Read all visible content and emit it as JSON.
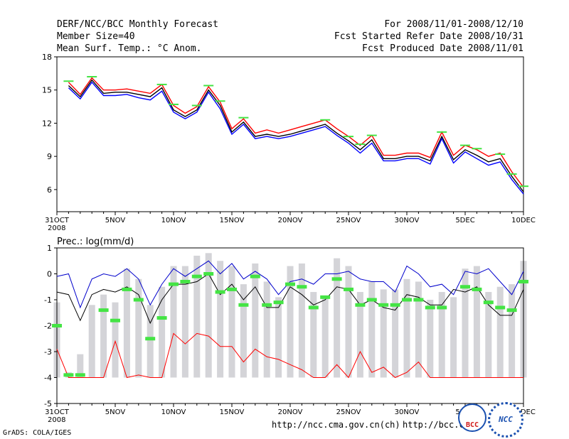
{
  "header": {
    "title": "DERF/NCC/BCC Monthly Forecast",
    "member_size": "Member Size=40",
    "variable": "Mean Surf. Temp.: °C Anom.",
    "period": "For 2008/11/01-2008/12/10",
    "fcst_start": "Fcst Started Refer Date 2008/10/31",
    "fcst_produced": "Fcst Produced Date 2008/11/01"
  },
  "chart_data": [
    {
      "type": "line",
      "title": "Mean Surf. Temp.: °C Anom.",
      "x": [
        0,
        1,
        2,
        3,
        4,
        5,
        6,
        7,
        8,
        9,
        10,
        11,
        12,
        13,
        14,
        15,
        16,
        17,
        18,
        19,
        20,
        21,
        22,
        23,
        24,
        25,
        26,
        27,
        28,
        29,
        30,
        31,
        32,
        33,
        34,
        35,
        36,
        37,
        38,
        39,
        40
      ],
      "x_tick_labels": [
        "31OCT",
        "5NOV",
        "10NOV",
        "15NOV",
        "20NOV",
        "25NOV",
        "30NOV",
        "5DEC",
        "10DEC"
      ],
      "x_sub_label": "2008",
      "ylim": [
        4,
        18
      ],
      "y_ticks": [
        6,
        9,
        12,
        15,
        18
      ],
      "series": [
        {
          "name": "ensemble max",
          "color": "#ff0000",
          "values": [
            null,
            15.7,
            14.6,
            16.1,
            15.0,
            15.0,
            15.1,
            14.9,
            14.7,
            15.5,
            13.6,
            12.9,
            13.5,
            15.3,
            13.9,
            11.5,
            12.4,
            11.1,
            11.4,
            11.1,
            11.4,
            11.7,
            12.0,
            12.3,
            11.5,
            10.8,
            10.0,
            10.9,
            9.1,
            9.1,
            9.3,
            9.3,
            8.9,
            11.2,
            9.1,
            10.0,
            9.6,
            9.0,
            9.3,
            7.6,
            6.2
          ]
        },
        {
          "name": "ensemble mean",
          "color": "#000000",
          "values": [
            null,
            15.4,
            14.4,
            15.9,
            14.7,
            14.8,
            14.8,
            14.6,
            14.4,
            15.2,
            13.2,
            12.6,
            13.2,
            15.0,
            13.6,
            11.2,
            12.1,
            10.8,
            11.0,
            10.8,
            11.0,
            11.3,
            11.6,
            11.9,
            11.1,
            10.4,
            9.6,
            10.5,
            8.8,
            8.8,
            9.0,
            9.0,
            8.6,
            10.8,
            8.7,
            9.6,
            9.1,
            8.5,
            8.8,
            7.2,
            5.8
          ]
        },
        {
          "name": "ensemble min",
          "color": "#0000ff",
          "values": [
            null,
            15.2,
            14.2,
            15.7,
            14.5,
            14.5,
            14.6,
            14.3,
            14.1,
            14.9,
            13.0,
            12.4,
            13.0,
            14.8,
            13.3,
            11.0,
            11.9,
            10.6,
            10.8,
            10.6,
            10.8,
            11.1,
            11.4,
            11.7,
            10.9,
            10.2,
            9.3,
            10.2,
            8.6,
            8.6,
            8.8,
            8.8,
            8.3,
            10.6,
            8.4,
            9.4,
            8.8,
            8.2,
            8.5,
            6.9,
            5.6
          ]
        },
        {
          "name": "observed/climatology marks",
          "color": "#44e444",
          "values": [
            null,
            15.8,
            null,
            16.2,
            null,
            null,
            null,
            null,
            null,
            15.5,
            13.7,
            null,
            13.6,
            15.4,
            14.0,
            null,
            12.5,
            null,
            null,
            null,
            null,
            null,
            null,
            12.3,
            null,
            10.8,
            10.1,
            10.9,
            null,
            null,
            null,
            null,
            null,
            11.2,
            null,
            10.0,
            9.7,
            null,
            9.2,
            7.4,
            6.3
          ]
        }
      ]
    },
    {
      "type": "bar",
      "title": "Prec.: log(mm/d)",
      "x": [
        0,
        1,
        2,
        3,
        4,
        5,
        6,
        7,
        8,
        9,
        10,
        11,
        12,
        13,
        14,
        15,
        16,
        17,
        18,
        19,
        20,
        21,
        22,
        23,
        24,
        25,
        26,
        27,
        28,
        29,
        30,
        31,
        32,
        33,
        34,
        35,
        36,
        37,
        38,
        39,
        40
      ],
      "x_tick_labels": [
        "31OCT",
        "5NOV",
        "10NOV",
        "15NOV",
        "20NOV",
        "25NOV",
        "30NOV",
        "5DEC",
        "10DEC"
      ],
      "x_sub_label": "2008",
      "ylim": [
        -5,
        1
      ],
      "y_ticks": [
        -5,
        -4,
        -3,
        -2,
        -1,
        0,
        1
      ],
      "baseline": -4,
      "series": [
        {
          "name": "bars",
          "color": "#d4d4d8",
          "values": [
            -1.1,
            -3.8,
            -3.1,
            -1.2,
            -0.8,
            -1.1,
            0.2,
            -0.2,
            -1.2,
            -0.5,
            0.3,
            0.3,
            0.7,
            0.8,
            0.5,
            0.3,
            -0.4,
            0.4,
            -0.3,
            -0.9,
            0.3,
            0.4,
            -0.7,
            -0.9,
            0.6,
            0.3,
            -0.7,
            -0.3,
            -0.6,
            -0.6,
            -0.2,
            -0.3,
            -1.0,
            -0.7,
            -0.9,
            0.2,
            0.3,
            -0.7,
            -0.5,
            -0.4,
            0.5
          ]
        },
        {
          "name": "upper",
          "color": "#0000cc",
          "values": [
            -0.1,
            0.0,
            -1.3,
            -0.2,
            0.0,
            -0.1,
            0.2,
            -0.2,
            -1.2,
            -0.4,
            0.2,
            -0.1,
            0.2,
            0.5,
            0.0,
            0.4,
            -0.2,
            0.1,
            -0.2,
            -0.8,
            -0.3,
            -0.2,
            -0.4,
            0.0,
            0.0,
            0.1,
            -0.2,
            -0.3,
            -0.3,
            -0.7,
            0.3,
            0.0,
            -0.5,
            -0.4,
            -0.8,
            0.1,
            0.0,
            0.2,
            -0.3,
            -0.8,
            0.1
          ]
        },
        {
          "name": "mean",
          "color": "#000000",
          "values": [
            -0.7,
            -0.8,
            -1.8,
            -0.8,
            -0.6,
            -0.7,
            -0.5,
            -0.8,
            -1.9,
            -1.0,
            -0.4,
            -0.4,
            -0.3,
            0.0,
            -0.8,
            -0.4,
            -1.0,
            -0.5,
            -1.3,
            -1.3,
            -0.5,
            -0.8,
            -1.2,
            -1.0,
            -0.5,
            -0.6,
            -1.2,
            -1.0,
            -1.3,
            -1.4,
            -0.8,
            -0.9,
            -1.2,
            -1.2,
            -0.6,
            -0.7,
            -0.5,
            -1.2,
            -1.6,
            -1.6,
            -0.6
          ]
        },
        {
          "name": "lower",
          "color": "#ff0000",
          "values": [
            -2.9,
            -4.0,
            -4.0,
            -4.0,
            -4.0,
            -2.6,
            -4.0,
            -3.9,
            -4.0,
            -4.0,
            -2.3,
            -2.7,
            -2.3,
            -2.4,
            -2.8,
            -2.8,
            -3.4,
            -2.9,
            -3.2,
            -3.3,
            -3.5,
            -3.7,
            -4.0,
            -4.0,
            -3.5,
            -4.0,
            -3.0,
            -3.8,
            -3.6,
            -4.0,
            -3.8,
            -3.4,
            -4.0,
            -4.0,
            -4.0,
            -4.0,
            -4.0,
            -4.0,
            -4.0,
            -4.0,
            -4.0
          ]
        },
        {
          "name": "marks",
          "color": "#44e444",
          "values": [
            -2.0,
            -3.9,
            -3.9,
            null,
            -1.4,
            -1.8,
            -0.6,
            -1.0,
            -2.5,
            -1.7,
            -0.4,
            -0.3,
            -0.1,
            0.0,
            -0.7,
            -0.6,
            -1.2,
            -0.1,
            -1.2,
            -1.1,
            -0.4,
            -0.5,
            -1.3,
            -0.9,
            -0.2,
            -0.6,
            -1.2,
            -1.0,
            -1.2,
            -1.2,
            -1.0,
            -1.0,
            -1.3,
            -1.3,
            null,
            -0.5,
            -0.6,
            -1.1,
            -1.3,
            -1.4,
            -0.3
          ]
        }
      ]
    }
  ],
  "footer": {
    "grads_credit": "GrADS: COLA/IGES",
    "url1": "http://ncc.cma.gov.cn(ch)",
    "url2": "http://bcc.c"
  },
  "logos": {
    "bcc": "BCC",
    "ncc": "NCC"
  }
}
